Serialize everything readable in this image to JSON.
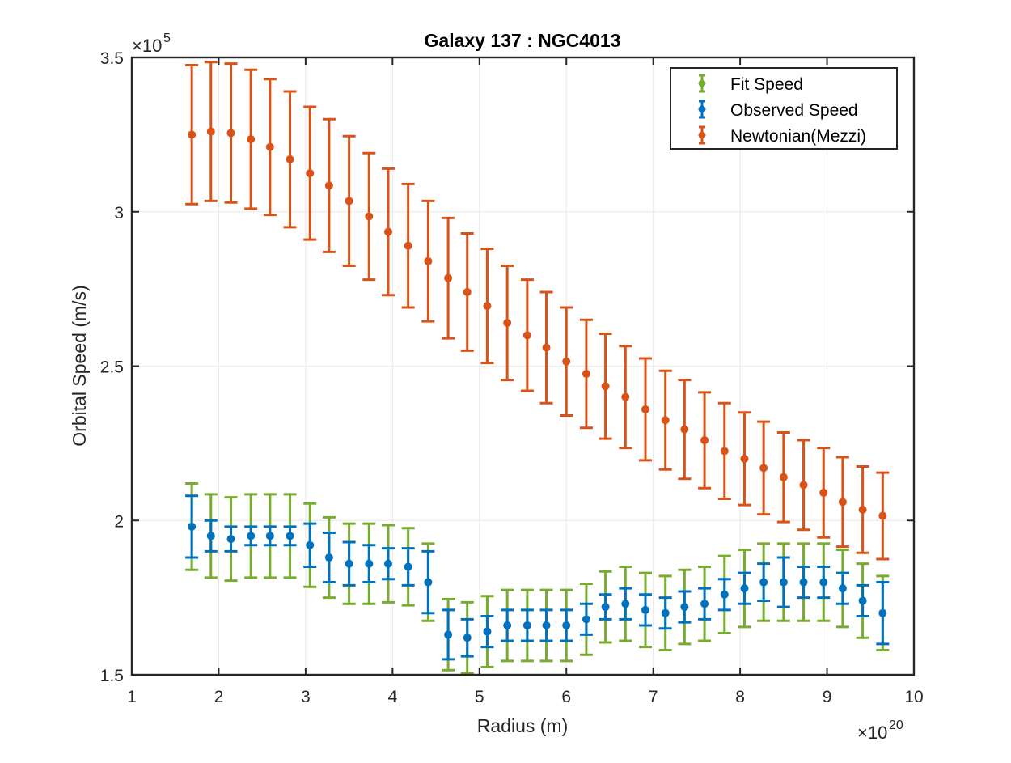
{
  "chart_data": {
    "type": "scatter",
    "title": "Galaxy 137 : NGC4013",
    "xlabel": "Radius (m)",
    "ylabel": "Orbital Speed (m/s)",
    "x_exponent_label": "×10",
    "x_exponent_power": "20",
    "y_exponent_label": "×10",
    "y_exponent_power": "5",
    "xlim": [
      1,
      10
    ],
    "ylim": [
      1.5,
      3.5
    ],
    "x_ticks": [
      1,
      2,
      3,
      4,
      5,
      6,
      7,
      8,
      9,
      10
    ],
    "x_tick_labels": [
      "1",
      "2",
      "3",
      "4",
      "5",
      "6",
      "7",
      "8",
      "9",
      "10"
    ],
    "y_ticks": [
      1.5,
      2,
      2.5,
      3,
      3.5
    ],
    "y_tick_labels": [
      "1.5",
      "2",
      "2.5",
      "3",
      "3.5"
    ],
    "grid": true,
    "legend_position": "top-right",
    "x": [
      1.69,
      1.91,
      2.14,
      2.37,
      2.59,
      2.82,
      3.05,
      3.27,
      3.5,
      3.73,
      3.95,
      4.18,
      4.41,
      4.64,
      4.86,
      5.09,
      5.32,
      5.55,
      5.77,
      6.0,
      6.23,
      6.45,
      6.68,
      6.91,
      7.14,
      7.36,
      7.59,
      7.82,
      8.05,
      8.27,
      8.5,
      8.73,
      8.96,
      9.18,
      9.41,
      9.64
    ],
    "series": [
      {
        "name": "Fit Speed",
        "color": "#77AC30",
        "marker_size": 0,
        "y": [
          1.98,
          1.95,
          1.94,
          1.95,
          1.95,
          1.95,
          1.92,
          1.88,
          1.86,
          1.86,
          1.86,
          1.85,
          1.8,
          1.63,
          1.62,
          1.64,
          1.66,
          1.66,
          1.66,
          1.66,
          1.68,
          1.72,
          1.73,
          1.71,
          1.7,
          1.72,
          1.73,
          1.76,
          1.78,
          1.8,
          1.8,
          1.8,
          1.8,
          1.78,
          1.74,
          1.7
        ],
        "err": [
          0.14,
          0.135,
          0.135,
          0.135,
          0.135,
          0.135,
          0.135,
          0.13,
          0.13,
          0.13,
          0.125,
          0.125,
          0.125,
          0.115,
          0.115,
          0.115,
          0.115,
          0.115,
          0.115,
          0.115,
          0.115,
          0.115,
          0.12,
          0.12,
          0.12,
          0.12,
          0.12,
          0.125,
          0.125,
          0.125,
          0.125,
          0.125,
          0.125,
          0.125,
          0.12,
          0.12
        ]
      },
      {
        "name": "Observed Speed",
        "color": "#0072BD",
        "marker_size": 5,
        "y": [
          1.98,
          1.95,
          1.94,
          1.95,
          1.95,
          1.95,
          1.92,
          1.88,
          1.86,
          1.86,
          1.86,
          1.85,
          1.8,
          1.63,
          1.62,
          1.64,
          1.66,
          1.66,
          1.66,
          1.66,
          1.68,
          1.72,
          1.73,
          1.71,
          1.7,
          1.72,
          1.73,
          1.76,
          1.78,
          1.8,
          1.8,
          1.8,
          1.8,
          1.78,
          1.74,
          1.7
        ],
        "err": [
          0.1,
          0.05,
          0.04,
          0.03,
          0.03,
          0.03,
          0.07,
          0.08,
          0.07,
          0.06,
          0.05,
          0.06,
          0.1,
          0.08,
          0.06,
          0.05,
          0.05,
          0.05,
          0.05,
          0.05,
          0.05,
          0.04,
          0.05,
          0.05,
          0.05,
          0.05,
          0.05,
          0.05,
          0.05,
          0.06,
          0.08,
          0.05,
          0.05,
          0.05,
          0.05,
          0.1
        ]
      },
      {
        "name": "Newtonian(Mezzi)",
        "color": "#D95319",
        "marker_size": 5,
        "y": [
          3.25,
          3.26,
          3.255,
          3.235,
          3.21,
          3.17,
          3.125,
          3.085,
          3.035,
          2.985,
          2.935,
          2.89,
          2.84,
          2.785,
          2.74,
          2.695,
          2.64,
          2.6,
          2.56,
          2.515,
          2.475,
          2.435,
          2.4,
          2.36,
          2.325,
          2.295,
          2.26,
          2.225,
          2.2,
          2.17,
          2.14,
          2.115,
          2.09,
          2.06,
          2.035,
          2.015
        ],
        "err": [
          0.225,
          0.225,
          0.225,
          0.225,
          0.22,
          0.22,
          0.215,
          0.215,
          0.21,
          0.205,
          0.205,
          0.2,
          0.195,
          0.195,
          0.19,
          0.185,
          0.185,
          0.18,
          0.18,
          0.175,
          0.175,
          0.17,
          0.165,
          0.165,
          0.16,
          0.16,
          0.155,
          0.155,
          0.15,
          0.15,
          0.145,
          0.145,
          0.145,
          0.145,
          0.14,
          0.14
        ]
      }
    ]
  }
}
